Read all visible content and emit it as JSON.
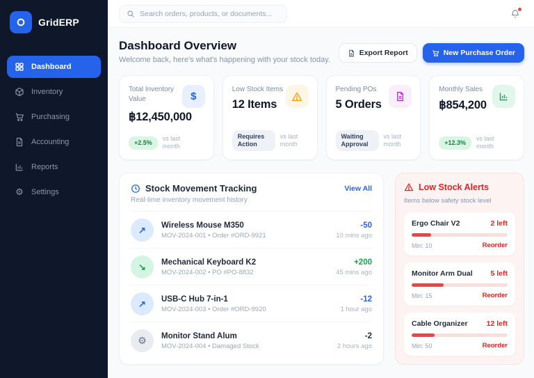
{
  "app": {
    "name": "GridERP"
  },
  "colors": {
    "accent": "#2563eb",
    "sidebar_bg": "#0f172a",
    "danger": "#dc2626",
    "success": "#16a34a",
    "warning": "#f59e0b",
    "purple": "#c026d3"
  },
  "topbar": {
    "search_placeholder": "Search orders, products, or documents...",
    "bell_icon": "bell-icon"
  },
  "sidebar": {
    "items": [
      {
        "label": "Dashboard",
        "icon": "dashboard-icon",
        "active": true
      },
      {
        "label": "Inventory",
        "icon": "inventory-icon",
        "active": false
      },
      {
        "label": "Purchasing",
        "icon": "cart-icon",
        "active": false
      },
      {
        "label": "Accounting",
        "icon": "document-icon",
        "active": false
      },
      {
        "label": "Reports",
        "icon": "bar-chart-icon",
        "active": false
      },
      {
        "label": "Settings",
        "icon": "gear-icon",
        "active": false
      }
    ]
  },
  "header": {
    "title": "Dashboard Overview",
    "subtitle": "Welcome back, here's what's happening with your stock today.",
    "export_label": "Export Report",
    "new_po_label": "New Purchase Order"
  },
  "stats": {
    "cards": [
      {
        "title": "Total Inventory Value",
        "value": "฿12,450,000",
        "badge": "+2.5%",
        "badge_type": "success",
        "note": "vs last month",
        "icon": "dollar-icon",
        "icon_glyph": "$"
      },
      {
        "title": "Low Stock Items",
        "value": "12 Items",
        "badge": "Requires Action",
        "badge_type": "neutral",
        "note": "vs last month",
        "icon": "warning-icon",
        "icon_glyph": ""
      },
      {
        "title": "Pending POs",
        "value": "5 Orders",
        "badge": "Waiting Approval",
        "badge_type": "neutral",
        "note": "vs last month",
        "icon": "document-icon",
        "icon_glyph": ""
      },
      {
        "title": "Monthly Sales",
        "value": "฿854,200",
        "badge": "+12.3%",
        "badge_type": "success",
        "note": "vs last month",
        "icon": "bar-chart-icon",
        "icon_glyph": ""
      }
    ]
  },
  "movements": {
    "title": "Stock Movement Tracking",
    "subtitle": "Real-time inventory movement history",
    "view_all_label": "View All",
    "items": [
      {
        "name": "Wireless Mouse M350",
        "meta": "MOV-2024-001 • Order #ORD-9921",
        "qty": "-50",
        "qty_type": "out",
        "time": "10 mins ago",
        "icon": "arrow-up-right-icon",
        "icon_glyph": "↗"
      },
      {
        "name": "Mechanical Keyboard K2",
        "meta": "MOV-2024-002 • PO #PO-8832",
        "qty": "+200",
        "qty_type": "in",
        "time": "45 mins ago",
        "icon": "arrow-down-right-icon",
        "icon_glyph": "↘"
      },
      {
        "name": "USB-C Hub 7-in-1",
        "meta": "MOV-2024-003 • Order #ORD-9920",
        "qty": "-12",
        "qty_type": "out",
        "time": "1 hour ago",
        "icon": "arrow-up-right-icon",
        "icon_glyph": "↗"
      },
      {
        "name": "Monitor Stand Alum",
        "meta": "MOV-2024-004 • Damaged Stock",
        "qty": "-2",
        "qty_type": "adjust",
        "time": "2 hours ago",
        "icon": "gear-icon",
        "icon_glyph": "⚙"
      }
    ]
  },
  "alerts": {
    "title": "Low Stock Alerts",
    "subtitle": "Items below safety stock level",
    "items": [
      {
        "name": "Ergo Chair V2",
        "left": "2 left",
        "min": "Min: 10",
        "action": "Reorder",
        "pct": 20
      },
      {
        "name": "Monitor Arm Dual",
        "left": "5 left",
        "min": "Min: 15",
        "action": "Reorder",
        "pct": 33
      },
      {
        "name": "Cable Organizer",
        "left": "12 left",
        "min": "Min: 50",
        "action": "Reorder",
        "pct": 24
      }
    ]
  }
}
